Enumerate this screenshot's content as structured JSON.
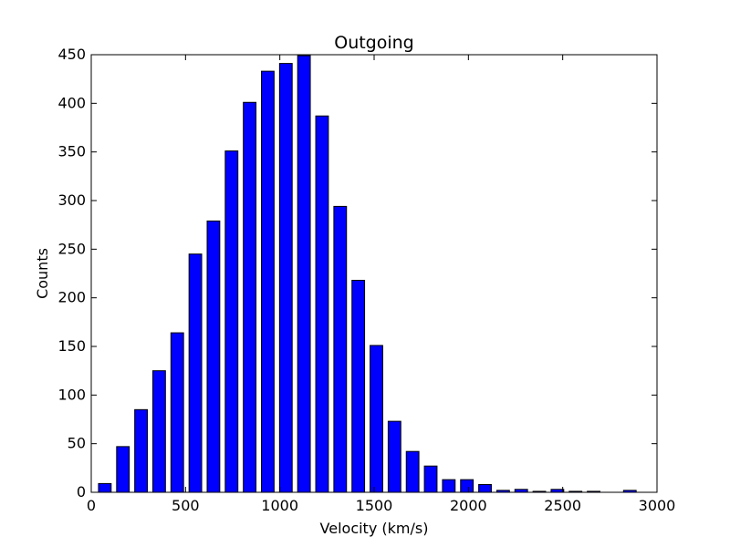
{
  "chart_data": {
    "type": "bar",
    "title": "Outgoing",
    "xlabel": "Velocity (km/s)",
    "ylabel": "Counts",
    "xlim": [
      0,
      3000
    ],
    "ylim": [
      0,
      450
    ],
    "xticks": [
      0,
      500,
      1000,
      1500,
      2000,
      2500,
      3000
    ],
    "yticks": [
      0,
      50,
      100,
      150,
      200,
      250,
      300,
      350,
      400,
      450
    ],
    "grid": false,
    "bar_color": "#0000ff",
    "edge_color": "#000000",
    "bin_width": 96,
    "bar_width": 67,
    "x": [
      72,
      168,
      264,
      360,
      456,
      552,
      648,
      744,
      840,
      936,
      1032,
      1128,
      1224,
      1320,
      1416,
      1512,
      1608,
      1704,
      1800,
      1896,
      1992,
      2088,
      2184,
      2280,
      2376,
      2472,
      2568,
      2664,
      2760,
      2856
    ],
    "values": [
      9,
      47,
      85,
      125,
      164,
      245,
      279,
      351,
      401,
      433,
      441,
      449,
      387,
      294,
      218,
      151,
      73,
      42,
      27,
      13,
      13,
      8,
      2,
      3,
      1,
      3,
      1,
      1,
      0,
      2
    ]
  }
}
